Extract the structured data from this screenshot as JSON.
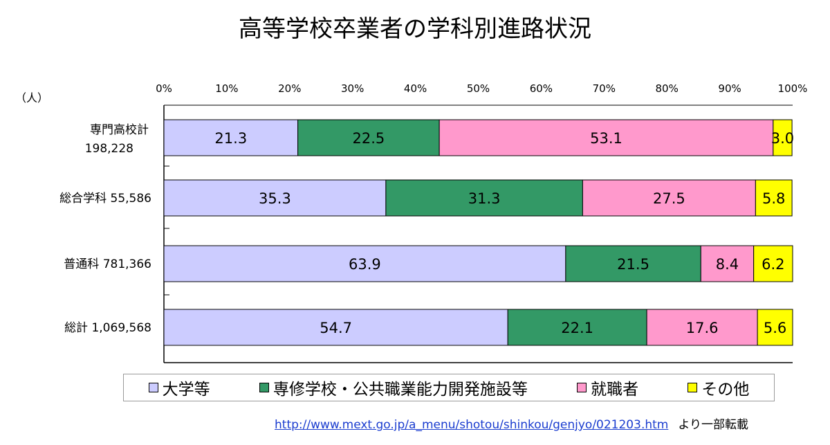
{
  "chart_data": {
    "type": "bar",
    "orientation": "horizontal",
    "stacked": true,
    "title": "高等学校卒業者の学科別進路状況",
    "unit_label": "（人）",
    "categories": [
      {
        "name": "専門高校計",
        "count": "198,228"
      },
      {
        "name": "総合学科",
        "count": "55,586"
      },
      {
        "name": "普通科",
        "count": "781,366"
      },
      {
        "name": "総計",
        "count": "1,069,568"
      }
    ],
    "x_ticks": [
      "0%",
      "10%",
      "20%",
      "30%",
      "40%",
      "50%",
      "60%",
      "70%",
      "80%",
      "90%",
      "100%"
    ],
    "xlim": [
      0,
      100
    ],
    "series": [
      {
        "name": "大学等",
        "values": [
          21.3,
          35.3,
          63.9,
          54.7
        ],
        "color": "#ccccff"
      },
      {
        "name": "専修学校・公共職業能力開発施設等",
        "values": [
          22.5,
          31.3,
          21.5,
          22.1
        ],
        "color": "#339966"
      },
      {
        "name": "就職者",
        "values": [
          53.1,
          27.5,
          8.4,
          17.6
        ],
        "color": "#ff99cc"
      },
      {
        "name": "その他",
        "values": [
          3.0,
          5.8,
          6.2,
          5.6
        ],
        "color": "#ffff00"
      }
    ],
    "value_labels": [
      [
        "21.3",
        "22.5",
        "53.1",
        "3.0"
      ],
      [
        "35.3",
        "31.3",
        "27.5",
        "5.8"
      ],
      [
        "63.9",
        "21.5",
        "8.4",
        "6.2"
      ],
      [
        "54.7",
        "22.1",
        "17.6",
        "5.6"
      ]
    ],
    "legend_position": "bottom",
    "grid": false
  },
  "source": {
    "url": "http://www.mext.go.jp/a_menu/shotou/shinkou/genjyo/021203.htm",
    "suffix": "より一部転載"
  }
}
